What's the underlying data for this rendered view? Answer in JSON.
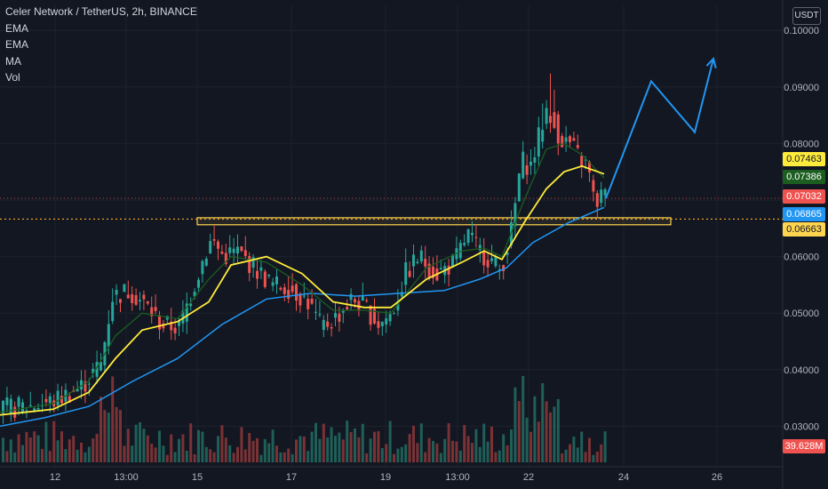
{
  "chart_data": {
    "type": "candlestick",
    "title": "Celer Network / TetherUS, 2h, BINANCE",
    "indicators": [
      "EMA",
      "EMA",
      "MA",
      "Vol"
    ],
    "quote_unit": "USDT",
    "y_ticks": [
      "0.10000",
      "0.09000",
      "0.08000",
      "0.07000",
      "0.06000",
      "0.05000",
      "0.04000",
      "0.03000"
    ],
    "ylim": [
      0.0258,
      0.1037
    ],
    "x_tick_labels": [
      "12",
      "13:00",
      "15",
      "17",
      "19",
      "13:00",
      "22",
      "24",
      "26"
    ],
    "price_labels": [
      {
        "value": "0.07463",
        "name": "ema-fast",
        "color": "#ffeb3b",
        "text_color": "#131722"
      },
      {
        "value": "0.07386",
        "name": "ema-slow",
        "color": "#1b5e20",
        "text_color": "#ffffff"
      },
      {
        "value": "0.07032",
        "name": "last-price",
        "color": "#ef5350",
        "text_color": "#ffffff"
      },
      {
        "value": "0.06865",
        "name": "moving-average",
        "color": "#2196f3",
        "text_color": "#ffffff"
      },
      {
        "value": "0.06663",
        "name": "support-level",
        "color": "#ffd54f",
        "text_color": "#131722"
      },
      {
        "value": "39.628M",
        "name": "volume",
        "color": "#ef5350",
        "text_color": "#ffffff"
      }
    ],
    "last_price": 0.07032,
    "support_level": 0.06663,
    "support_zone": [
      0.06563,
      0.06687
    ],
    "colors": {
      "up": "#26a69a",
      "down": "#ef5350",
      "ema_fast": "#ffeb3b",
      "ema_slow": "#1b5e20",
      "ma": "#2196f3",
      "projection": "#2196f3",
      "support": "#ffd54f"
    },
    "anchor_points": [
      {
        "x": 0,
        "y": 0.033
      },
      {
        "x": 30,
        "y": 0.0335
      },
      {
        "x": 60,
        "y": 0.0345
      },
      {
        "x": 90,
        "y": 0.037
      },
      {
        "x": 112,
        "y": 0.041
      },
      {
        "x": 125,
        "y": 0.053
      },
      {
        "x": 145,
        "y": 0.054
      },
      {
        "x": 165,
        "y": 0.051
      },
      {
        "x": 180,
        "y": 0.048
      },
      {
        "x": 200,
        "y": 0.0475
      },
      {
        "x": 215,
        "y": 0.054
      },
      {
        "x": 228,
        "y": 0.06
      },
      {
        "x": 237,
        "y": 0.063
      },
      {
        "x": 250,
        "y": 0.06
      },
      {
        "x": 265,
        "y": 0.061
      },
      {
        "x": 285,
        "y": 0.058
      },
      {
        "x": 305,
        "y": 0.055
      },
      {
        "x": 325,
        "y": 0.0545
      },
      {
        "x": 345,
        "y": 0.052
      },
      {
        "x": 360,
        "y": 0.0475
      },
      {
        "x": 375,
        "y": 0.049
      },
      {
        "x": 395,
        "y": 0.0525
      },
      {
        "x": 410,
        "y": 0.051
      },
      {
        "x": 425,
        "y": 0.048
      },
      {
        "x": 440,
        "y": 0.05
      },
      {
        "x": 455,
        "y": 0.057
      },
      {
        "x": 470,
        "y": 0.06
      },
      {
        "x": 490,
        "y": 0.057
      },
      {
        "x": 510,
        "y": 0.059
      },
      {
        "x": 525,
        "y": 0.064
      },
      {
        "x": 535,
        "y": 0.0615
      },
      {
        "x": 550,
        "y": 0.0595
      },
      {
        "x": 562,
        "y": 0.0575
      },
      {
        "x": 575,
        "y": 0.065
      },
      {
        "x": 585,
        "y": 0.077
      },
      {
        "x": 596,
        "y": 0.076
      },
      {
        "x": 610,
        "y": 0.084
      },
      {
        "x": 620,
        "y": 0.086
      },
      {
        "x": 628,
        "y": 0.081
      },
      {
        "x": 640,
        "y": 0.08
      },
      {
        "x": 652,
        "y": 0.077
      },
      {
        "x": 660,
        "y": 0.076
      },
      {
        "x": 668,
        "y": 0.069
      },
      {
        "x": 676,
        "y": 0.071
      },
      {
        "x": 682,
        "y": 0.0703
      }
    ],
    "ema_fast_points": [
      {
        "x": 0,
        "y": 0.032
      },
      {
        "x": 60,
        "y": 0.033
      },
      {
        "x": 100,
        "y": 0.036
      },
      {
        "x": 130,
        "y": 0.042
      },
      {
        "x": 160,
        "y": 0.047
      },
      {
        "x": 200,
        "y": 0.0485
      },
      {
        "x": 235,
        "y": 0.052
      },
      {
        "x": 260,
        "y": 0.0585
      },
      {
        "x": 300,
        "y": 0.06
      },
      {
        "x": 340,
        "y": 0.057
      },
      {
        "x": 375,
        "y": 0.052
      },
      {
        "x": 410,
        "y": 0.051
      },
      {
        "x": 440,
        "y": 0.051
      },
      {
        "x": 480,
        "y": 0.056
      },
      {
        "x": 520,
        "y": 0.059
      },
      {
        "x": 545,
        "y": 0.061
      },
      {
        "x": 565,
        "y": 0.0595
      },
      {
        "x": 590,
        "y": 0.066
      },
      {
        "x": 615,
        "y": 0.072
      },
      {
        "x": 635,
        "y": 0.075
      },
      {
        "x": 655,
        "y": 0.076
      },
      {
        "x": 680,
        "y": 0.0746
      }
    ],
    "ema_slow_points": [
      {
        "x": 0,
        "y": 0.0325
      },
      {
        "x": 60,
        "y": 0.034
      },
      {
        "x": 100,
        "y": 0.038
      },
      {
        "x": 130,
        "y": 0.046
      },
      {
        "x": 160,
        "y": 0.05
      },
      {
        "x": 200,
        "y": 0.049
      },
      {
        "x": 235,
        "y": 0.056
      },
      {
        "x": 260,
        "y": 0.06
      },
      {
        "x": 300,
        "y": 0.059
      },
      {
        "x": 340,
        "y": 0.055
      },
      {
        "x": 375,
        "y": 0.0505
      },
      {
        "x": 410,
        "y": 0.0505
      },
      {
        "x": 440,
        "y": 0.05
      },
      {
        "x": 480,
        "y": 0.058
      },
      {
        "x": 520,
        "y": 0.061
      },
      {
        "x": 545,
        "y": 0.0615
      },
      {
        "x": 565,
        "y": 0.06
      },
      {
        "x": 590,
        "y": 0.07
      },
      {
        "x": 615,
        "y": 0.079
      },
      {
        "x": 635,
        "y": 0.08
      },
      {
        "x": 655,
        "y": 0.078
      },
      {
        "x": 680,
        "y": 0.0739
      }
    ],
    "ma_points": [
      {
        "x": 0,
        "y": 0.03
      },
      {
        "x": 50,
        "y": 0.0315
      },
      {
        "x": 100,
        "y": 0.0335
      },
      {
        "x": 150,
        "y": 0.038
      },
      {
        "x": 200,
        "y": 0.042
      },
      {
        "x": 250,
        "y": 0.048
      },
      {
        "x": 300,
        "y": 0.0525
      },
      {
        "x": 350,
        "y": 0.0535
      },
      {
        "x": 400,
        "y": 0.053
      },
      {
        "x": 450,
        "y": 0.0535
      },
      {
        "x": 500,
        "y": 0.054
      },
      {
        "x": 540,
        "y": 0.056
      },
      {
        "x": 570,
        "y": 0.058
      },
      {
        "x": 600,
        "y": 0.0625
      },
      {
        "x": 640,
        "y": 0.066
      },
      {
        "x": 680,
        "y": 0.0687
      }
    ],
    "projection_points": [
      {
        "x": 682,
        "y": 0.0703
      },
      {
        "x": 733,
        "y": 0.091
      },
      {
        "x": 782,
        "y": 0.082
      },
      {
        "x": 803,
        "y": 0.095
      }
    ]
  }
}
